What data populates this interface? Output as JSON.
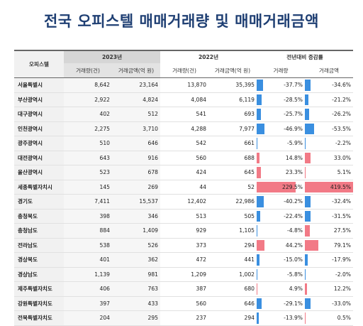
{
  "title": "전국 오피스텔 매매거래량 및 매매거래금액",
  "header": {
    "region": "오피스텔",
    "year2023": "2023년",
    "year2022": "2022년",
    "yoy": "전년대비 증감률",
    "sub": [
      "거래량(건)",
      "거래금액(억 원)",
      "거래량(건)",
      "거래금액(억 원)",
      "거래량",
      "거래금액"
    ]
  },
  "colors": {
    "increase": "#f27a86",
    "decrease": "#3a8fe0"
  },
  "rows": [
    {
      "region": "서울특별시",
      "v2023": "8,642",
      "a2023": "23,164",
      "v2022": "13,870",
      "a2022": "35,395",
      "dv": "-37.7%",
      "da": "-34.6%",
      "dv_n": -37.7,
      "da_n": -34.6
    },
    {
      "region": "부산광역시",
      "v2023": "2,922",
      "a2023": "4,824",
      "v2022": "4,084",
      "a2022": "6,119",
      "dv": "-28.5%",
      "da": "-21.2%",
      "dv_n": -28.5,
      "da_n": -21.2
    },
    {
      "region": "대구광역시",
      "v2023": "402",
      "a2023": "512",
      "v2022": "541",
      "a2022": "693",
      "dv": "-25.7%",
      "da": "-26.2%",
      "dv_n": -25.7,
      "da_n": -26.2
    },
    {
      "region": "인천광역시",
      "v2023": "2,275",
      "a2023": "3,710",
      "v2022": "4,288",
      "a2022": "7,977",
      "dv": "-46.9%",
      "da": "-53.5%",
      "dv_n": -46.9,
      "da_n": -53.5
    },
    {
      "region": "광주광역시",
      "v2023": "510",
      "a2023": "646",
      "v2022": "542",
      "a2022": "661",
      "dv": "-5.9%",
      "da": "-2.2%",
      "dv_n": -5.9,
      "da_n": -2.2
    },
    {
      "region": "대전광역시",
      "v2023": "643",
      "a2023": "916",
      "v2022": "560",
      "a2022": "688",
      "dv": "14.8%",
      "da": "33.0%",
      "dv_n": 14.8,
      "da_n": 33.0
    },
    {
      "region": "울산광역시",
      "v2023": "523",
      "a2023": "678",
      "v2022": "424",
      "a2022": "645",
      "dv": "23.3%",
      "da": "5.1%",
      "dv_n": 23.3,
      "da_n": 5.1
    },
    {
      "region": "세종특별자치시",
      "v2023": "145",
      "a2023": "269",
      "v2022": "44",
      "a2022": "52",
      "dv": "229.5%",
      "da": "419.5%",
      "dv_n": 229.5,
      "da_n": 419.5
    },
    {
      "region": "경기도",
      "v2023": "7,411",
      "a2023": "15,537",
      "v2022": "12,402",
      "a2022": "22,986",
      "dv": "-40.2%",
      "da": "-32.4%",
      "dv_n": -40.2,
      "da_n": -32.4
    },
    {
      "region": "충청북도",
      "v2023": "398",
      "a2023": "346",
      "v2022": "513",
      "a2022": "505",
      "dv": "-22.4%",
      "da": "-31.5%",
      "dv_n": -22.4,
      "da_n": -31.5
    },
    {
      "region": "충청남도",
      "v2023": "884",
      "a2023": "1,409",
      "v2022": "929",
      "a2022": "1,105",
      "dv": "-4.8%",
      "da": "27.5%",
      "dv_n": -4.8,
      "da_n": 27.5
    },
    {
      "region": "전라남도",
      "v2023": "538",
      "a2023": "526",
      "v2022": "373",
      "a2022": "294",
      "dv": "44.2%",
      "da": "79.1%",
      "dv_n": 44.2,
      "da_n": 79.1
    },
    {
      "region": "경상북도",
      "v2023": "401",
      "a2023": "362",
      "v2022": "472",
      "a2022": "441",
      "dv": "-15.0%",
      "da": "-17.9%",
      "dv_n": -15.0,
      "da_n": -17.9
    },
    {
      "region": "경상남도",
      "v2023": "1,139",
      "a2023": "981",
      "v2022": "1,209",
      "a2022": "1,002",
      "dv": "-5.8%",
      "da": "-2.0%",
      "dv_n": -5.8,
      "da_n": -2.0
    },
    {
      "region": "제주특별자치도",
      "v2023": "406",
      "a2023": "763",
      "v2022": "387",
      "a2022": "680",
      "dv": "4.9%",
      "da": "12.2%",
      "dv_n": 4.9,
      "da_n": 12.2
    },
    {
      "region": "강원특별자치도",
      "v2023": "397",
      "a2023": "433",
      "v2022": "560",
      "a2022": "646",
      "dv": "-29.1%",
      "da": "-33.0%",
      "dv_n": -29.1,
      "da_n": -33.0
    },
    {
      "region": "전북특별자치도",
      "v2023": "204",
      "a2023": "295",
      "v2022": "237",
      "a2022": "294",
      "dv": "-13.9%",
      "da": "0.5%",
      "dv_n": -13.9,
      "da_n": 0.5
    }
  ]
}
